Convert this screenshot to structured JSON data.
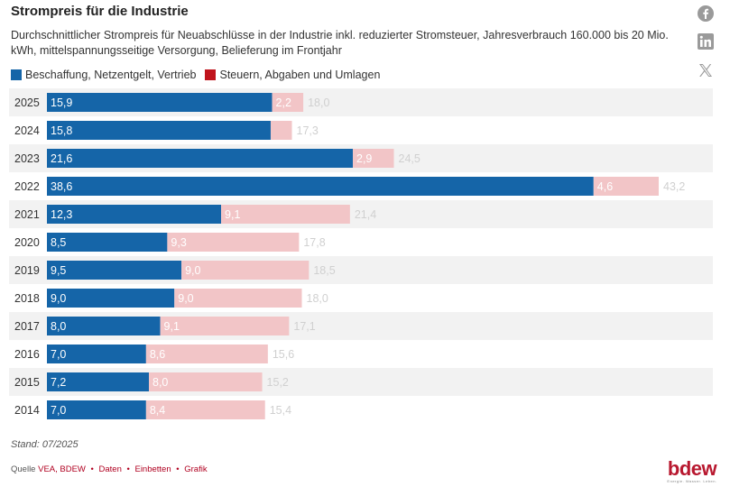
{
  "title": "Strompreis für die Industrie",
  "subtitle": "Durchschnittlicher Strompreis für Neuabschlüsse in der Industrie inkl. reduzierter Stromsteuer, Jahresverbrauch 160.000 bis 20 Mio. kWh, mittelspannungsseitige Versorgung, Belieferung im Frontjahr",
  "legend": [
    {
      "label": "Beschaffung, Netzentgelt, Vertrieb",
      "color": "#1565a8"
    },
    {
      "label": "Steuern, Abgaben und Umlagen",
      "color": "#c0141c"
    }
  ],
  "note": "Stand: 07/2025",
  "source": {
    "prefix": "Quelle",
    "name": "VEA, BDEW",
    "links": [
      "Daten",
      "Einbetten",
      "Grafik"
    ]
  },
  "share_icons": [
    "facebook-icon",
    "linkedin-icon",
    "x-icon"
  ],
  "logo": {
    "word": "bdew",
    "tagline": "Energie. Wasser. Leben."
  },
  "colors": {
    "series1": "#1565a8",
    "series2_bar": "#f2c5c7",
    "series2_legend": "#c0141c",
    "total_label": "#d0d0d0",
    "stripe": "#f2f2f2"
  },
  "chart_data": {
    "type": "bar",
    "orientation": "horizontal",
    "stacked": true,
    "categories": [
      "2025",
      "2024",
      "2023",
      "2022",
      "2021",
      "2020",
      "2019",
      "2018",
      "2017",
      "2016",
      "2015",
      "2014"
    ],
    "series": [
      {
        "name": "Beschaffung, Netzentgelt, Vertrieb",
        "values": [
          15.9,
          15.8,
          21.6,
          38.6,
          12.3,
          8.5,
          9.5,
          9.0,
          8.0,
          7.0,
          7.2,
          7.0
        ],
        "labels": [
          "15,9",
          "15,8",
          "21,6",
          "38,6",
          "12,3",
          "8,5",
          "9,5",
          "9,0",
          "8,0",
          "7,0",
          "7,2",
          "7,0"
        ]
      },
      {
        "name": "Steuern, Abgaben und Umlagen",
        "values": [
          2.2,
          1.5,
          2.9,
          4.6,
          9.1,
          9.3,
          9.0,
          9.0,
          9.1,
          8.6,
          8.0,
          8.4
        ],
        "labels": [
          "2,2",
          "",
          "2,9",
          "4,6",
          "9,1",
          "9,3",
          "9,0",
          "9,0",
          "9,1",
          "8,6",
          "8,0",
          "8,4"
        ]
      }
    ],
    "totals": [
      18.0,
      17.3,
      24.5,
      43.2,
      21.4,
      17.8,
      18.5,
      18.0,
      17.1,
      15.6,
      15.2,
      15.4
    ],
    "total_labels": [
      "18,0",
      "17,3",
      "24,5",
      "43,2",
      "21,4",
      "17,8",
      "18,5",
      "18,0",
      "17,1",
      "15,6",
      "15,2",
      "15,4"
    ],
    "xlim": [
      0,
      43.2
    ],
    "grid": false,
    "legend_position": "top-left"
  }
}
